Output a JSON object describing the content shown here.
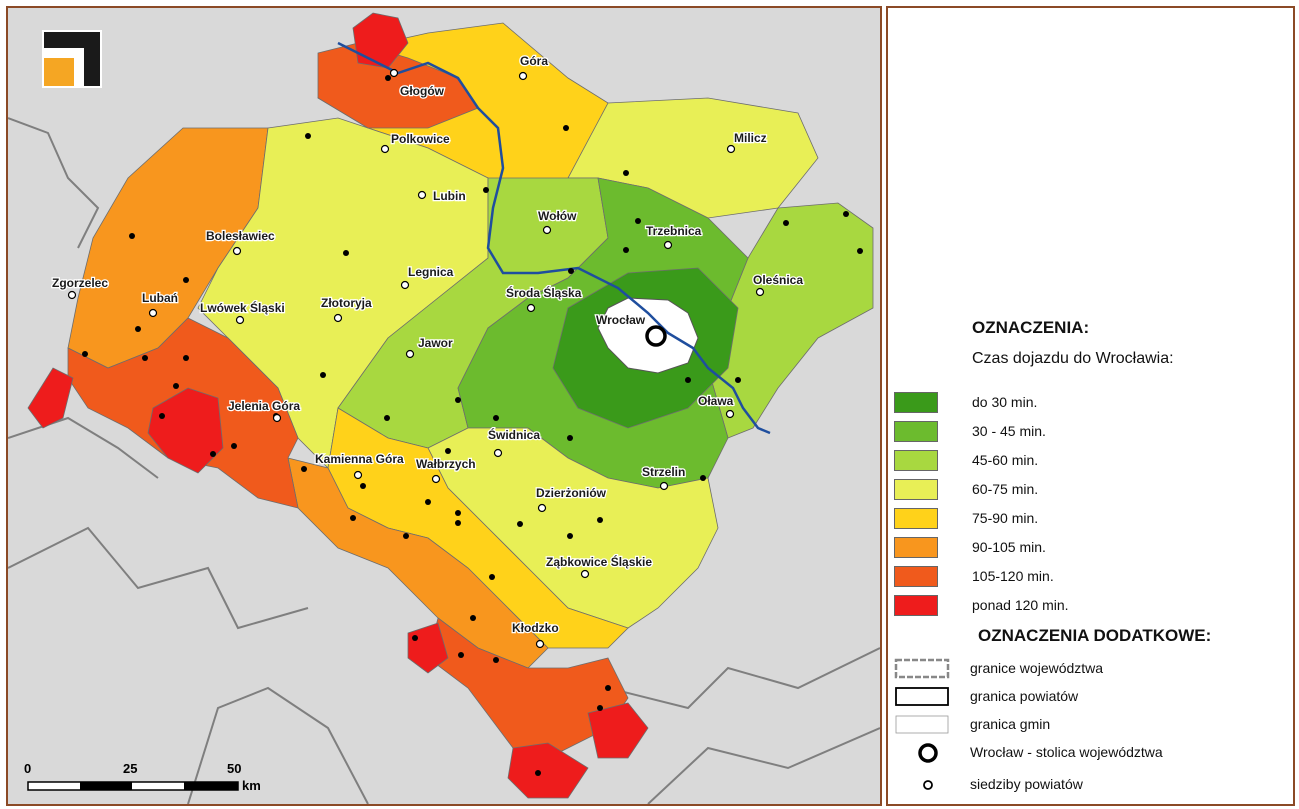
{
  "map": {
    "colors": {
      "background": "#d9d9d9",
      "neighbor_border": "#7f7f7f",
      "river": "#1f4e9e",
      "wroclaw": "#ffffff"
    },
    "cities": [
      {
        "name": "Góra"
      },
      {
        "name": "Głogów"
      },
      {
        "name": "Polkowice"
      },
      {
        "name": "Milicz"
      },
      {
        "name": "Lubin"
      },
      {
        "name": "Wołów"
      },
      {
        "name": "Trzebnica"
      },
      {
        "name": "Bolesławiec"
      },
      {
        "name": "Legnica"
      },
      {
        "name": "Oleśnica"
      },
      {
        "name": "Zgorzelec"
      },
      {
        "name": "Lubań"
      },
      {
        "name": "Lwówek Śląski"
      },
      {
        "name": "Złotoryja"
      },
      {
        "name": "Środa Śląska"
      },
      {
        "name": "Wrocław"
      },
      {
        "name": "Jawor"
      },
      {
        "name": "Oława"
      },
      {
        "name": "Jelenia Góra"
      },
      {
        "name": "Świdnica"
      },
      {
        "name": "Kamienna Góra"
      },
      {
        "name": "Wałbrzych"
      },
      {
        "name": "Strzelin"
      },
      {
        "name": "Dzierżoniów"
      },
      {
        "name": "Ząbkowice Śląskie"
      },
      {
        "name": "Kłodzko"
      }
    ],
    "scale_bar": {
      "label_0": "0",
      "label_25": "25",
      "label_50": "50",
      "unit": "km"
    }
  },
  "legend": {
    "title": "OZNACZENIA:",
    "subtitle": "Czas dojazdu do Wrocławia:",
    "classes": [
      {
        "label": "do 30 min.",
        "color": "#3a9a1a"
      },
      {
        "label": "30 - 45 min.",
        "color": "#6cbb2e"
      },
      {
        "label": "45-60 min.",
        "color": "#a8d840"
      },
      {
        "label": "60-75 min.",
        "color": "#e8ef56"
      },
      {
        "label": "75-90 min.",
        "color": "#ffd21a"
      },
      {
        "label": "90-105 min.",
        "color": "#f8961e"
      },
      {
        "label": "105-120 min.",
        "color": "#f05a1c"
      },
      {
        "label": "ponad 120 min.",
        "color": "#ee1c1c"
      }
    ],
    "extra_title": "OZNACZENIA DODATKOWE:",
    "extra": [
      {
        "label": "granice województwa",
        "symbol": "province-border-icon"
      },
      {
        "label": "granica powiatów",
        "symbol": "county-border-icon"
      },
      {
        "label": "granica gmin",
        "symbol": "commune-border-icon"
      },
      {
        "label": "Wrocław - stolica województwa",
        "symbol": "capital-circle-icon"
      },
      {
        "label": "siedziby powiatów",
        "symbol": "county-seat-icon"
      }
    ]
  }
}
